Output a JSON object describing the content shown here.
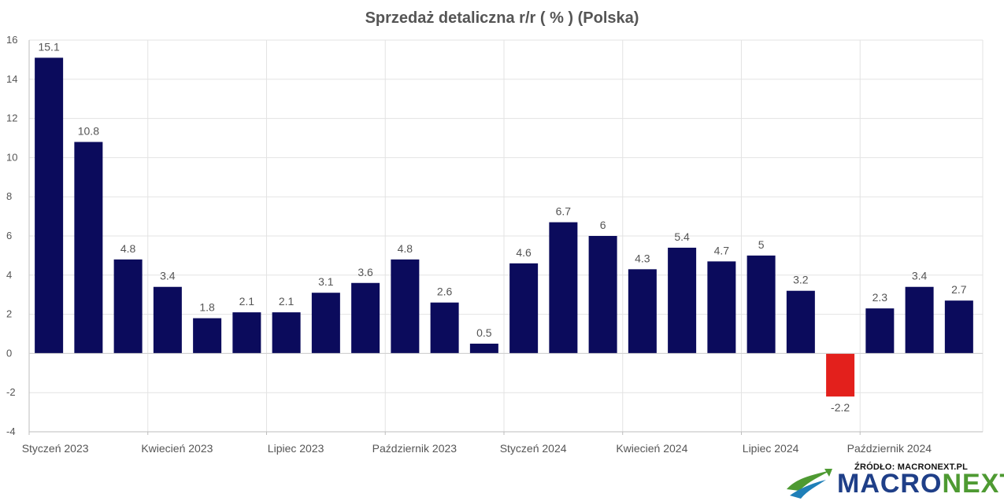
{
  "chart_data": {
    "type": "bar",
    "title": "Sprzedaż detaliczna r/r ( % ) (Polska)",
    "xlabel": "",
    "ylabel": "",
    "ylim": [
      -4,
      16
    ],
    "yticks": [
      -4,
      -2,
      0,
      2,
      4,
      6,
      8,
      10,
      12,
      14,
      16
    ],
    "grid": true,
    "categories": [
      "2023-01",
      "2023-02",
      "2023-03",
      "2023-04",
      "2023-05",
      "2023-06",
      "2023-07",
      "2023-08",
      "2023-09",
      "2023-10",
      "2023-11",
      "2023-12",
      "2024-01",
      "2024-02",
      "2024-03",
      "2024-04",
      "2024-05",
      "2024-06",
      "2024-07",
      "2024-08",
      "2024-09",
      "2024-10",
      "2024-11",
      "2024-12"
    ],
    "x_tick_labels": [
      {
        "category": "2023-01",
        "label": "Styczeń 2023"
      },
      {
        "category": "2023-04",
        "label": "Kwiecień 2023"
      },
      {
        "category": "2023-07",
        "label": "Lipiec 2023"
      },
      {
        "category": "2023-10",
        "label": "Październik 2023"
      },
      {
        "category": "2024-01",
        "label": "Styczeń 2024"
      },
      {
        "category": "2024-04",
        "label": "Kwiecień 2024"
      },
      {
        "category": "2024-07",
        "label": "Lipiec 2024"
      },
      {
        "category": "2024-10",
        "label": "Październik 2024"
      }
    ],
    "values": [
      15.1,
      10.8,
      4.8,
      3.4,
      1.8,
      2.1,
      2.1,
      3.1,
      3.6,
      4.8,
      2.6,
      0.5,
      4.6,
      6.7,
      6,
      4.3,
      5.4,
      4.7,
      5,
      3.2,
      -2.2,
      2.3,
      3.4,
      2.7
    ],
    "value_labels": [
      "15.1",
      "10.8",
      "4.8",
      "3.4",
      "1.8",
      "2.1",
      "2.1",
      "3.1",
      "3.6",
      "4.8",
      "2.6",
      "0.5",
      "4.6",
      "6.7",
      "6",
      "4.3",
      "5.4",
      "4.7",
      "5",
      "3.2",
      "-2.2",
      "2.3",
      "3.4",
      "2.7"
    ],
    "colors": {
      "positive": "#0b0b5c",
      "negative": "#e3201c"
    }
  },
  "source": {
    "label": "ŹRÓDŁO: MACRONEXT.PL",
    "brand_part1": "MACRO",
    "brand_part2": "NEXT",
    "brand_colors": {
      "part1": "#1f3f88",
      "part2": "#4e9a32"
    },
    "logo_icon": "macronext-swoosh-icon"
  }
}
